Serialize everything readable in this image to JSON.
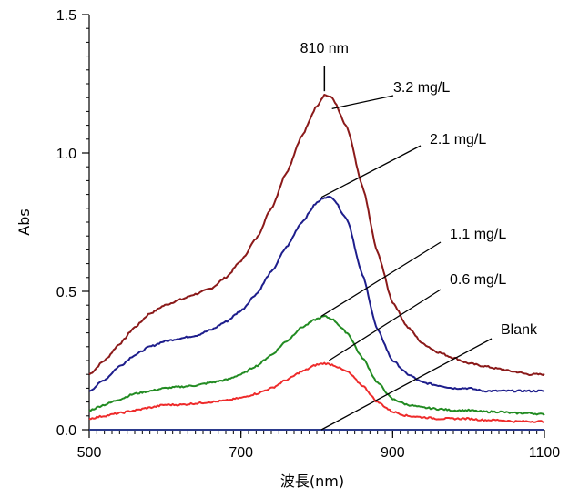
{
  "chart_data": {
    "type": "line",
    "xlabel": "波長(nm)",
    "ylabel": "Abs",
    "xlim": [
      500,
      1100
    ],
    "ylim": [
      0.0,
      1.5
    ],
    "x_ticks": [
      500,
      700,
      900,
      1100
    ],
    "y_ticks": [
      0.0,
      0.5,
      1.0,
      1.5
    ],
    "x_tick_labels": [
      "500",
      "700",
      "900",
      "1100"
    ],
    "y_tick_labels": [
      "0.0",
      "0.5",
      "1.0",
      "1.5"
    ],
    "grid": false,
    "legend": "none",
    "peak_annotation": {
      "label": "810 nm",
      "x": 810,
      "y": 1.21
    },
    "series": [
      {
        "name": "3.2 mg/L",
        "color": "#8B1A1A",
        "points": [
          [
            500,
            0.2
          ],
          [
            520,
            0.25
          ],
          [
            540,
            0.31
          ],
          [
            560,
            0.37
          ],
          [
            580,
            0.42
          ],
          [
            600,
            0.45
          ],
          [
            620,
            0.47
          ],
          [
            640,
            0.49
          ],
          [
            660,
            0.51
          ],
          [
            680,
            0.55
          ],
          [
            700,
            0.61
          ],
          [
            720,
            0.69
          ],
          [
            740,
            0.8
          ],
          [
            760,
            0.93
          ],
          [
            780,
            1.06
          ],
          [
            800,
            1.17
          ],
          [
            810,
            1.21
          ],
          [
            820,
            1.2
          ],
          [
            840,
            1.09
          ],
          [
            860,
            0.88
          ],
          [
            880,
            0.64
          ],
          [
            900,
            0.46
          ],
          [
            920,
            0.37
          ],
          [
            940,
            0.31
          ],
          [
            960,
            0.28
          ],
          [
            980,
            0.26
          ],
          [
            1000,
            0.24
          ],
          [
            1020,
            0.23
          ],
          [
            1040,
            0.22
          ],
          [
            1060,
            0.21
          ],
          [
            1080,
            0.2
          ],
          [
            1100,
            0.2
          ]
        ]
      },
      {
        "name": "2.1 mg/L",
        "color": "#1E1E8C",
        "points": [
          [
            500,
            0.14
          ],
          [
            520,
            0.18
          ],
          [
            540,
            0.23
          ],
          [
            560,
            0.27
          ],
          [
            580,
            0.3
          ],
          [
            600,
            0.32
          ],
          [
            620,
            0.33
          ],
          [
            640,
            0.34
          ],
          [
            660,
            0.36
          ],
          [
            680,
            0.39
          ],
          [
            700,
            0.43
          ],
          [
            720,
            0.49
          ],
          [
            740,
            0.57
          ],
          [
            760,
            0.66
          ],
          [
            780,
            0.75
          ],
          [
            800,
            0.82
          ],
          [
            810,
            0.84
          ],
          [
            820,
            0.84
          ],
          [
            840,
            0.76
          ],
          [
            860,
            0.56
          ],
          [
            880,
            0.36
          ],
          [
            900,
            0.25
          ],
          [
            920,
            0.2
          ],
          [
            940,
            0.17
          ],
          [
            960,
            0.16
          ],
          [
            980,
            0.15
          ],
          [
            1000,
            0.15
          ],
          [
            1020,
            0.14
          ],
          [
            1040,
            0.14
          ],
          [
            1060,
            0.14
          ],
          [
            1080,
            0.14
          ],
          [
            1100,
            0.14
          ]
        ]
      },
      {
        "name": "1.1 mg/L",
        "color": "#228B22",
        "points": [
          [
            500,
            0.07
          ],
          [
            520,
            0.09
          ],
          [
            540,
            0.11
          ],
          [
            560,
            0.13
          ],
          [
            580,
            0.14
          ],
          [
            600,
            0.15
          ],
          [
            620,
            0.155
          ],
          [
            640,
            0.16
          ],
          [
            660,
            0.17
          ],
          [
            680,
            0.18
          ],
          [
            700,
            0.2
          ],
          [
            720,
            0.23
          ],
          [
            740,
            0.27
          ],
          [
            760,
            0.32
          ],
          [
            780,
            0.37
          ],
          [
            800,
            0.4
          ],
          [
            810,
            0.41
          ],
          [
            820,
            0.4
          ],
          [
            840,
            0.35
          ],
          [
            860,
            0.26
          ],
          [
            880,
            0.17
          ],
          [
            900,
            0.11
          ],
          [
            920,
            0.09
          ],
          [
            940,
            0.08
          ],
          [
            960,
            0.075
          ],
          [
            980,
            0.07
          ],
          [
            1000,
            0.07
          ],
          [
            1020,
            0.065
          ],
          [
            1040,
            0.065
          ],
          [
            1060,
            0.06
          ],
          [
            1080,
            0.06
          ],
          [
            1100,
            0.055
          ]
        ]
      },
      {
        "name": "0.6 mg/L",
        "color": "#EE2B2B",
        "points": [
          [
            500,
            0.04
          ],
          [
            520,
            0.05
          ],
          [
            540,
            0.06
          ],
          [
            560,
            0.07
          ],
          [
            580,
            0.08
          ],
          [
            600,
            0.09
          ],
          [
            620,
            0.09
          ],
          [
            640,
            0.095
          ],
          [
            660,
            0.1
          ],
          [
            680,
            0.105
          ],
          [
            700,
            0.115
          ],
          [
            720,
            0.13
          ],
          [
            740,
            0.15
          ],
          [
            760,
            0.18
          ],
          [
            780,
            0.21
          ],
          [
            800,
            0.235
          ],
          [
            810,
            0.24
          ],
          [
            820,
            0.235
          ],
          [
            840,
            0.21
          ],
          [
            860,
            0.16
          ],
          [
            880,
            0.1
          ],
          [
            900,
            0.065
          ],
          [
            920,
            0.05
          ],
          [
            940,
            0.045
          ],
          [
            960,
            0.04
          ],
          [
            980,
            0.04
          ],
          [
            1000,
            0.04
          ],
          [
            1020,
            0.035
          ],
          [
            1040,
            0.035
          ],
          [
            1060,
            0.03
          ],
          [
            1080,
            0.03
          ],
          [
            1100,
            0.03
          ]
        ]
      },
      {
        "name": "Blank",
        "color": "#2B3A8C",
        "points": [
          [
            500,
            0.0
          ],
          [
            700,
            0.0
          ],
          [
            900,
            0.0
          ],
          [
            1100,
            0.0
          ]
        ]
      }
    ],
    "annotations": [
      {
        "text": "3.2 mg/L",
        "points_to": [
          820,
          1.16
        ]
      },
      {
        "text": "2.1 mg/L",
        "points_to": [
          806,
          0.84
        ]
      },
      {
        "text": "1.1 mg/L",
        "points_to": [
          806,
          0.41
        ]
      },
      {
        "text": "0.6 mg/L",
        "points_to": [
          816,
          0.25
        ]
      },
      {
        "text": "Blank",
        "points_to": [
          806,
          0.0
        ]
      }
    ]
  }
}
